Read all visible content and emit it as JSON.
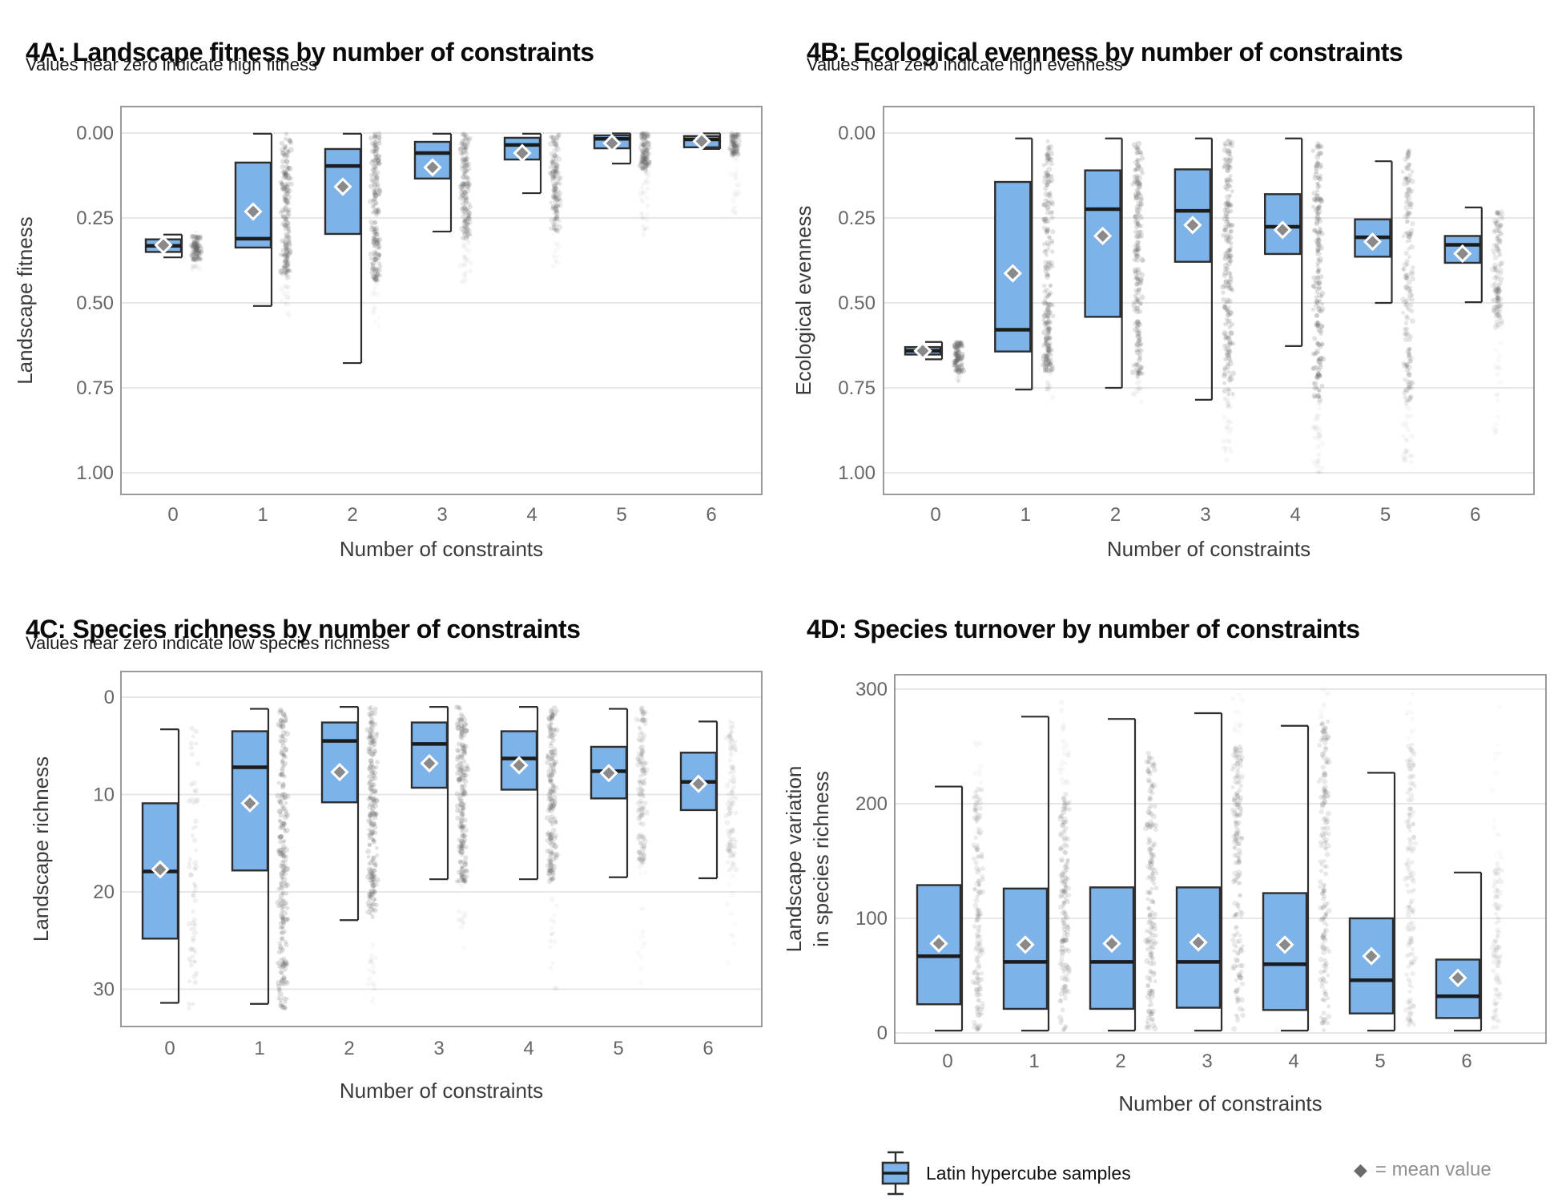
{
  "legend": {
    "box_label": "Latin hypercube samples",
    "mean_glyph": "◆",
    "mean_label": "=  mean  value"
  },
  "colors": {
    "box_fill": "#7db3e8",
    "box_stroke": "#2e2e2e",
    "median_stroke": "#1c1c1c",
    "mean_fill": "#8a8a8a",
    "mean_stroke": "#ffffff",
    "point": "#6b6b6b",
    "grid": "#e7e7e7",
    "panel_border": "#9a9a9a",
    "tick_text": "#666666",
    "axis_text": "#3a3a3a"
  },
  "chart_data": [
    {
      "id": "4A",
      "type": "boxplot-jitter",
      "title": "4A: Landscape fitness by number of constraints",
      "subtitle": "Values near zero indicate high fitness",
      "xlabel": "Number of constraints",
      "ylabel": "Landscape fitness",
      "ylabel2": "",
      "x_ticks": [
        "0",
        "1",
        "2",
        "3",
        "4",
        "5",
        "6"
      ],
      "y_ticks": [
        {
          "v": 0.0,
          "label": "0.00"
        },
        {
          "v": 0.25,
          "label": "0.25"
        },
        {
          "v": 0.5,
          "label": "0.50"
        },
        {
          "v": 0.75,
          "label": "0.75"
        },
        {
          "v": 1.0,
          "label": "1.00"
        }
      ],
      "ylim": [
        0,
        1
      ],
      "y_inverted": true,
      "grid": true,
      "boxes": [
        {
          "x": "0",
          "q_low": 0.313,
          "q_high": 0.35,
          "median": 0.332,
          "mean": 0.33,
          "w_low": 0.299,
          "w_high": 0.366,
          "points": [
            [
              0.302,
              0.375,
              80,
              0.22
            ],
            [
              0.29,
              0.41,
              12,
              0.06
            ]
          ]
        },
        {
          "x": "1",
          "q_low": 0.087,
          "q_high": 0.337,
          "median": 0.311,
          "mean": 0.231,
          "w_low": 0.002,
          "w_high": 0.509,
          "points": [
            [
              0.002,
              0.42,
              170,
              0.2
            ],
            [
              0.42,
              0.54,
              18,
              0.05
            ]
          ]
        },
        {
          "x": "2",
          "q_low": 0.047,
          "q_high": 0.297,
          "median": 0.097,
          "mean": 0.158,
          "w_low": 0.002,
          "w_high": 0.677,
          "points": [
            [
              0.002,
              0.44,
              170,
              0.2
            ],
            [
              0.44,
              0.58,
              14,
              0.04
            ]
          ]
        },
        {
          "x": "3",
          "q_low": 0.026,
          "q_high": 0.134,
          "median": 0.059,
          "mean": 0.101,
          "w_low": 0.002,
          "w_high": 0.29,
          "points": [
            [
              0.002,
              0.31,
              150,
              0.18
            ],
            [
              0.31,
              0.44,
              22,
              0.05
            ]
          ]
        },
        {
          "x": "4",
          "q_low": 0.014,
          "q_high": 0.078,
          "median": 0.035,
          "mean": 0.059,
          "w_low": 0.002,
          "w_high": 0.177,
          "points": [
            [
              0.002,
              0.29,
              140,
              0.16
            ],
            [
              0.29,
              0.4,
              12,
              0.04
            ]
          ]
        },
        {
          "x": "5",
          "q_low": 0.007,
          "q_high": 0.045,
          "median": 0.017,
          "mean": 0.03,
          "w_low": 0.001,
          "w_high": 0.09,
          "points": [
            [
              0.001,
              0.11,
              100,
              0.18
            ],
            [
              0.11,
              0.3,
              30,
              0.05
            ]
          ]
        },
        {
          "x": "6",
          "q_low": 0.009,
          "q_high": 0.042,
          "median": 0.019,
          "mean": 0.024,
          "w_low": 0.001,
          "w_high": 0.047,
          "points": [
            [
              0.001,
              0.065,
              80,
              0.18
            ],
            [
              0.065,
              0.24,
              22,
              0.04
            ]
          ]
        }
      ]
    },
    {
      "id": "4B",
      "type": "boxplot-jitter",
      "title": "4B: Ecological evenness by number of constraints",
      "subtitle": "Values near zero indicate high evenness",
      "xlabel": "Number of constraints",
      "ylabel": "Ecological evenness",
      "ylabel2": "",
      "x_ticks": [
        "0",
        "1",
        "2",
        "3",
        "4",
        "5",
        "6"
      ],
      "y_ticks": [
        {
          "v": 0.0,
          "label": "0.00"
        },
        {
          "v": 0.25,
          "label": "0.25"
        },
        {
          "v": 0.5,
          "label": "0.50"
        },
        {
          "v": 0.75,
          "label": "0.75"
        },
        {
          "v": 1.0,
          "label": "1.00"
        }
      ],
      "ylim": [
        0,
        1
      ],
      "y_inverted": true,
      "grid": true,
      "boxes": [
        {
          "x": "0",
          "q_low": 0.63,
          "q_high": 0.652,
          "median": 0.641,
          "mean": 0.641,
          "w_low": 0.615,
          "w_high": 0.666,
          "points": [
            [
              0.615,
              0.705,
              80,
              0.25
            ],
            [
              0.705,
              0.735,
              8,
              0.06
            ]
          ]
        },
        {
          "x": "1",
          "q_low": 0.144,
          "q_high": 0.643,
          "median": 0.579,
          "mean": 0.413,
          "w_low": 0.016,
          "w_high": 0.755,
          "points": [
            [
              0.02,
              0.57,
              150,
              0.18
            ],
            [
              0.57,
              0.7,
              70,
              0.22
            ],
            [
              0.7,
              0.78,
              12,
              0.05
            ]
          ]
        },
        {
          "x": "2",
          "q_low": 0.11,
          "q_high": 0.541,
          "median": 0.224,
          "mean": 0.303,
          "w_low": 0.016,
          "w_high": 0.75,
          "points": [
            [
              0.02,
              0.72,
              190,
              0.2
            ],
            [
              0.72,
              0.8,
              10,
              0.05
            ]
          ]
        },
        {
          "x": "3",
          "q_low": 0.107,
          "q_high": 0.379,
          "median": 0.229,
          "mean": 0.271,
          "w_low": 0.016,
          "w_high": 0.785,
          "points": [
            [
              0.02,
              0.77,
              190,
              0.2
            ],
            [
              0.77,
              1.0,
              28,
              0.05
            ]
          ]
        },
        {
          "x": "4",
          "q_low": 0.18,
          "q_high": 0.356,
          "median": 0.276,
          "mean": 0.285,
          "w_low": 0.016,
          "w_high": 0.627,
          "points": [
            [
              0.02,
              0.79,
              190,
              0.2
            ],
            [
              0.79,
              1.0,
              32,
              0.05
            ]
          ]
        },
        {
          "x": "5",
          "q_low": 0.254,
          "q_high": 0.364,
          "median": 0.307,
          "mean": 0.32,
          "w_low": 0.083,
          "w_high": 0.5,
          "points": [
            [
              0.05,
              0.79,
              160,
              0.16
            ],
            [
              0.79,
              1.0,
              26,
              0.05
            ]
          ]
        },
        {
          "x": "6",
          "q_low": 0.303,
          "q_high": 0.382,
          "median": 0.329,
          "mean": 0.355,
          "w_low": 0.219,
          "w_high": 0.498,
          "points": [
            [
              0.23,
              0.57,
              130,
              0.14
            ],
            [
              0.57,
              0.92,
              22,
              0.04
            ]
          ]
        }
      ]
    },
    {
      "id": "4C",
      "type": "boxplot-jitter",
      "title": "4C: Species richness by number of constraints",
      "subtitle": "Values near zero indicate low species richness",
      "xlabel": "Number of constraints",
      "ylabel": "Landscape richness",
      "ylabel2": "",
      "x_ticks": [
        "0",
        "1",
        "2",
        "3",
        "4",
        "5",
        "6"
      ],
      "y_ticks": [
        {
          "v": 0,
          "label": "0"
        },
        {
          "v": 10,
          "label": "10"
        },
        {
          "v": 20,
          "label": "20"
        },
        {
          "v": 30,
          "label": "30"
        }
      ],
      "ylim": [
        0,
        33
      ],
      "y_inverted": true,
      "grid": true,
      "boxes": [
        {
          "x": "0",
          "q_low": 10.9,
          "q_high": 24.8,
          "median": 17.9,
          "mean": 17.7,
          "w_low": 3.3,
          "w_high": 31.4,
          "points": [
            [
              3,
              32,
              65,
              0.1
            ]
          ]
        },
        {
          "x": "1",
          "q_low": 3.5,
          "q_high": 17.8,
          "median": 7.2,
          "mean": 10.9,
          "w_low": 1.2,
          "w_high": 31.5,
          "points": [
            [
              1,
              32,
              230,
              0.2
            ]
          ]
        },
        {
          "x": "2",
          "q_low": 2.6,
          "q_high": 10.8,
          "median": 4.5,
          "mean": 7.7,
          "w_low": 1.0,
          "w_high": 22.9,
          "points": [
            [
              1,
              23,
              200,
              0.2
            ],
            [
              23,
              32,
              18,
              0.05
            ]
          ]
        },
        {
          "x": "3",
          "q_low": 2.6,
          "q_high": 9.3,
          "median": 4.8,
          "mean": 6.8,
          "w_low": 1.0,
          "w_high": 18.7,
          "points": [
            [
              1,
              19,
              180,
              0.2
            ],
            [
              19,
              28,
              14,
              0.05
            ]
          ]
        },
        {
          "x": "4",
          "q_low": 3.5,
          "q_high": 9.5,
          "median": 6.3,
          "mean": 7.0,
          "w_low": 1.0,
          "w_high": 18.7,
          "points": [
            [
              1,
              19,
              180,
              0.18
            ],
            [
              19,
              30,
              16,
              0.05
            ]
          ]
        },
        {
          "x": "5",
          "q_low": 5.1,
          "q_high": 10.4,
          "median": 7.6,
          "mean": 7.8,
          "w_low": 1.2,
          "w_high": 18.5,
          "points": [
            [
              1,
              17,
              130,
              0.13
            ],
            [
              17,
              30,
              14,
              0.04
            ]
          ]
        },
        {
          "x": "6",
          "q_low": 5.7,
          "q_high": 11.6,
          "median": 8.7,
          "mean": 8.9,
          "w_low": 2.5,
          "w_high": 18.6,
          "points": [
            [
              2.5,
              18,
              90,
              0.09
            ],
            [
              18,
              28,
              10,
              0.04
            ]
          ]
        }
      ]
    },
    {
      "id": "4D",
      "type": "boxplot-jitter",
      "title": "4D: Species turnover by number of constraints",
      "subtitle": "",
      "xlabel": "Number of constraints",
      "ylabel": "Landscape variation",
      "ylabel2": "in species richness",
      "x_ticks": [
        "0",
        "1",
        "2",
        "3",
        "4",
        "5",
        "6"
      ],
      "y_ticks": [
        {
          "v": 0,
          "label": "0"
        },
        {
          "v": 100,
          "label": "100"
        },
        {
          "v": 200,
          "label": "200"
        },
        {
          "v": 300,
          "label": "300"
        }
      ],
      "ylim": [
        0,
        300
      ],
      "y_inverted": false,
      "grid": true,
      "boxes": [
        {
          "x": "0",
          "q_low": 25,
          "q_high": 129,
          "median": 67,
          "mean": 78,
          "w_low": 2,
          "w_high": 215,
          "points": [
            [
              2,
              215,
              150,
              0.13
            ],
            [
              215,
              255,
              8,
              0.04
            ]
          ]
        },
        {
          "x": "1",
          "q_low": 21,
          "q_high": 126,
          "median": 62,
          "mean": 77,
          "w_low": 2,
          "w_high": 276,
          "points": [
            [
              2,
              215,
              160,
              0.15
            ],
            [
              215,
              290,
              22,
              0.05
            ]
          ]
        },
        {
          "x": "2",
          "q_low": 21,
          "q_high": 127,
          "median": 62,
          "mean": 78,
          "w_low": 2,
          "w_high": 274,
          "points": [
            [
              2,
              245,
              170,
              0.16
            ]
          ]
        },
        {
          "x": "3",
          "q_low": 22,
          "q_high": 127,
          "median": 62,
          "mean": 79,
          "w_low": 2,
          "w_high": 279,
          "points": [
            [
              2,
              252,
              170,
              0.15
            ],
            [
              252,
              296,
              12,
              0.04
            ]
          ]
        },
        {
          "x": "4",
          "q_low": 20,
          "q_high": 122,
          "median": 60,
          "mean": 77,
          "w_low": 2,
          "w_high": 268,
          "points": [
            [
              2,
              272,
              170,
              0.15
            ],
            [
              272,
              300,
              8,
              0.04
            ]
          ]
        },
        {
          "x": "5",
          "q_low": 17,
          "q_high": 100,
          "median": 46,
          "mean": 67,
          "w_low": 2,
          "w_high": 227,
          "points": [
            [
              2,
              252,
              130,
              0.11
            ],
            [
              252,
              300,
              10,
              0.04
            ]
          ]
        },
        {
          "x": "6",
          "q_low": 13,
          "q_high": 64,
          "median": 32,
          "mean": 48,
          "w_low": 2,
          "w_high": 140,
          "points": [
            [
              2,
              148,
              90,
              0.09
            ],
            [
              148,
              290,
              14,
              0.03
            ]
          ]
        }
      ]
    }
  ]
}
